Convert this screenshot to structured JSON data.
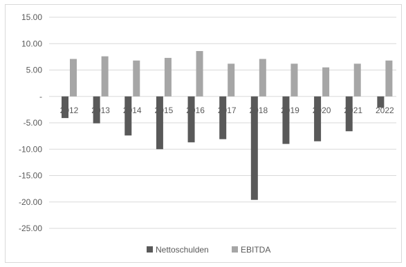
{
  "chart_data": {
    "type": "bar",
    "title": "",
    "xlabel": "",
    "ylabel": "",
    "categories": [
      "2012",
      "2013",
      "2014",
      "2015",
      "2016",
      "2017",
      "2018",
      "2019",
      "2020",
      "2021",
      "2022"
    ],
    "series": [
      {
        "name": "Nettoschulden",
        "color": "#595959",
        "values": [
          -4.1,
          -5.1,
          -7.4,
          -10.0,
          -8.7,
          -8.1,
          -19.6,
          -9.0,
          -8.5,
          -6.6,
          -2.1
        ]
      },
      {
        "name": "EBITDA",
        "color": "#a6a6a6",
        "values": [
          7.1,
          7.6,
          6.8,
          7.3,
          8.6,
          6.2,
          7.1,
          6.2,
          5.5,
          6.2,
          6.8
        ]
      }
    ],
    "ylim": [
      -25,
      15
    ],
    "yticks": [
      15,
      10,
      5,
      0,
      -5,
      -10,
      -15,
      -20,
      -25
    ],
    "ytick_labels": [
      "15.00",
      "10.00",
      "5.00",
      "-",
      "-5.00",
      "-10.00",
      "-15.00",
      "-20.00",
      "-25.00"
    ],
    "grid": true,
    "legend_position": "bottom"
  }
}
